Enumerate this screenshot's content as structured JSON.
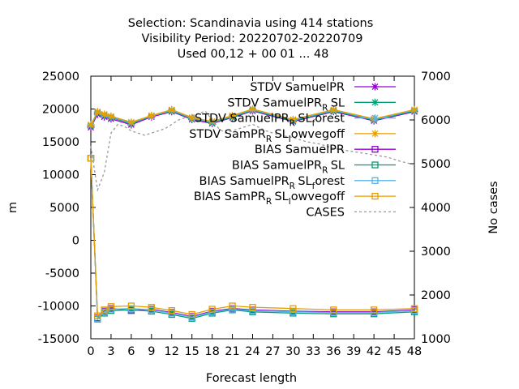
{
  "title_lines": [
    "Selection: Scandinavia using   414 stations",
    "Visibility   Period: 20220702-20220709",
    "Used  00,12 + 00 01 ... 48"
  ],
  "chart_data": {
    "type": "line",
    "xlabel": "Forecast length",
    "ylabel": "m",
    "y2label": "No cases",
    "xlim": [
      0,
      48
    ],
    "ylim": [
      -15000,
      25000
    ],
    "y2lim": [
      1000,
      7000
    ],
    "xticks": [
      0,
      3,
      6,
      9,
      12,
      15,
      18,
      21,
      24,
      27,
      30,
      33,
      36,
      39,
      42,
      45,
      48
    ],
    "yticks": [
      -15000,
      -10000,
      -5000,
      0,
      5000,
      10000,
      15000,
      20000,
      25000
    ],
    "y2ticks": [
      1000,
      2000,
      3000,
      4000,
      5000,
      6000,
      7000
    ],
    "legend_position": "top-right",
    "series": [
      {
        "name": "STDV SamuelPR",
        "color": "#9400d3",
        "marker": "x",
        "dash": false,
        "x": [
          0,
          1,
          2,
          3,
          6,
          9,
          12,
          15,
          18,
          21,
          24,
          30,
          36,
          42,
          48
        ],
        "y": [
          17200,
          19200,
          18800,
          18500,
          17600,
          18800,
          19600,
          18400,
          17800,
          18700,
          19700,
          18100,
          19600,
          18200,
          19600
        ]
      },
      {
        "name": "STDV SamuelPR_R SL",
        "color": "#009e73",
        "marker": "x",
        "dash": false,
        "x": [
          0,
          1,
          2,
          3,
          6,
          9,
          12,
          15,
          18,
          21,
          24,
          30,
          36,
          42,
          48
        ],
        "y": [
          17400,
          19400,
          19000,
          18700,
          17800,
          18900,
          19700,
          18500,
          17900,
          18800,
          19800,
          18200,
          19700,
          18300,
          19700
        ]
      },
      {
        "name": "STDV SamuelPR_R SL_forest",
        "color": "#56b4e9",
        "marker": "x",
        "dash": false,
        "x": [
          0,
          1,
          2,
          3,
          6,
          9,
          12,
          15,
          18,
          21,
          24,
          30,
          36,
          42,
          48
        ],
        "y": [
          17500,
          19500,
          19100,
          18800,
          17900,
          18900,
          19800,
          18600,
          18000,
          18900,
          19900,
          18300,
          19800,
          18400,
          19800
        ]
      },
      {
        "name": "STDV SamPR_R SL_lowvegoff",
        "color": "#e69f00",
        "marker": "x",
        "dash": false,
        "x": [
          0,
          1,
          2,
          3,
          6,
          9,
          12,
          15,
          18,
          21,
          24,
          30,
          36,
          42,
          48
        ],
        "y": [
          17600,
          19600,
          19200,
          18900,
          18000,
          19000,
          19900,
          18700,
          18100,
          19000,
          20000,
          18400,
          19900,
          18500,
          19900
        ]
      },
      {
        "name": "BIAS SamuelPR",
        "color": "#9400d3",
        "marker": "square",
        "dash": false,
        "x": [
          0,
          1,
          2,
          3,
          6,
          9,
          12,
          15,
          18,
          21,
          24,
          30,
          36,
          42,
          48
        ],
        "y": [
          12500,
          -11800,
          -10800,
          -10400,
          -10700,
          -10500,
          -11000,
          -11600,
          -10800,
          -10400,
          -10600,
          -10800,
          -10900,
          -10900,
          -10600
        ]
      },
      {
        "name": "BIAS SamuelPR_R SL",
        "color": "#009e73",
        "marker": "square",
        "dash": false,
        "x": [
          0,
          1,
          2,
          3,
          6,
          9,
          12,
          15,
          18,
          21,
          24,
          30,
          36,
          42,
          48
        ],
        "y": [
          12500,
          -12000,
          -11100,
          -10700,
          -10600,
          -10800,
          -11300,
          -11900,
          -11100,
          -10600,
          -10900,
          -11100,
          -11200,
          -11200,
          -10900
        ]
      },
      {
        "name": "BIAS SamuelPR_R SL_forest",
        "color": "#56b4e9",
        "marker": "square",
        "dash": false,
        "x": [
          0,
          1,
          2,
          3,
          6,
          9,
          12,
          15,
          18,
          21,
          24,
          30,
          36,
          42,
          48
        ],
        "y": [
          12500,
          -11900,
          -10900,
          -10500,
          -10400,
          -10600,
          -11100,
          -11700,
          -10900,
          -10500,
          -10700,
          -10900,
          -11000,
          -11000,
          -10700
        ]
      },
      {
        "name": "BIAS SamPR_R SL_lowvegoff",
        "color": "#e69f00",
        "marker": "square",
        "dash": false,
        "x": [
          0,
          1,
          2,
          3,
          6,
          9,
          12,
          15,
          18,
          21,
          24,
          30,
          36,
          42,
          48
        ],
        "y": [
          12500,
          -11500,
          -10600,
          -10100,
          -10000,
          -10200,
          -10700,
          -11300,
          -10500,
          -10000,
          -10200,
          -10400,
          -10600,
          -10600,
          -10400
        ]
      },
      {
        "name": "CASES",
        "color": "#999999",
        "marker": "none",
        "dash": true,
        "axis": "y2",
        "x": [
          0,
          1,
          2,
          3,
          4,
          5,
          6,
          7,
          8,
          9,
          10,
          11,
          12,
          13,
          14,
          15,
          16,
          17,
          18,
          19,
          20,
          21,
          22,
          23,
          24,
          26,
          28,
          30,
          32,
          34,
          36,
          38,
          40,
          42,
          44,
          46,
          48
        ],
        "y": [
          5400,
          4400,
          4800,
          5700,
          5900,
          5850,
          5750,
          5700,
          5650,
          5700,
          5750,
          5800,
          5900,
          6000,
          6050,
          6100,
          6150,
          6200,
          6000,
          5800,
          5700,
          5750,
          5800,
          5850,
          5900,
          5750,
          5650,
          5600,
          5500,
          5450,
          5350,
          5300,
          5250,
          5200,
          5150,
          5050,
          4980
        ]
      }
    ],
    "legend": [
      {
        "label": "STDV SamuelPR",
        "main": "STDV SamuelPR",
        "sub": "",
        "rest": ""
      },
      {
        "label": "STDV SamuelPR_R SL",
        "main": "STDV SamuelPR",
        "sub": "R",
        "rest": "SL"
      },
      {
        "label": "STDV SamuelPR_R SL_forest",
        "main": "STDV SamuelPR",
        "sub": "R",
        "rest": "SL",
        "sub2": "f",
        "rest2": "orest"
      },
      {
        "label": "STDV SamPR_R SL_lowvegoff",
        "main": "STDV SamPR",
        "sub": "R",
        "rest": "SL",
        "sub2": "l",
        "rest2": "owvegoff"
      },
      {
        "label": "BIAS SamuelPR",
        "main": "BIAS SamuelPR",
        "sub": "",
        "rest": ""
      },
      {
        "label": "BIAS SamuelPR_R SL",
        "main": "BIAS SamuelPR",
        "sub": "R",
        "rest": "SL"
      },
      {
        "label": "BIAS SamuelPR_R SL_forest",
        "main": "BIAS SamuelPR",
        "sub": "R",
        "rest": "SL",
        "sub2": "f",
        "rest2": "orest"
      },
      {
        "label": "BIAS SamPR_R SL_lowvegoff",
        "main": "BIAS SamPR",
        "sub": "R",
        "rest": "SL",
        "sub2": "l",
        "rest2": "owvegoff"
      },
      {
        "label": "CASES",
        "main": "CASES",
        "sub": "",
        "rest": ""
      }
    ]
  }
}
